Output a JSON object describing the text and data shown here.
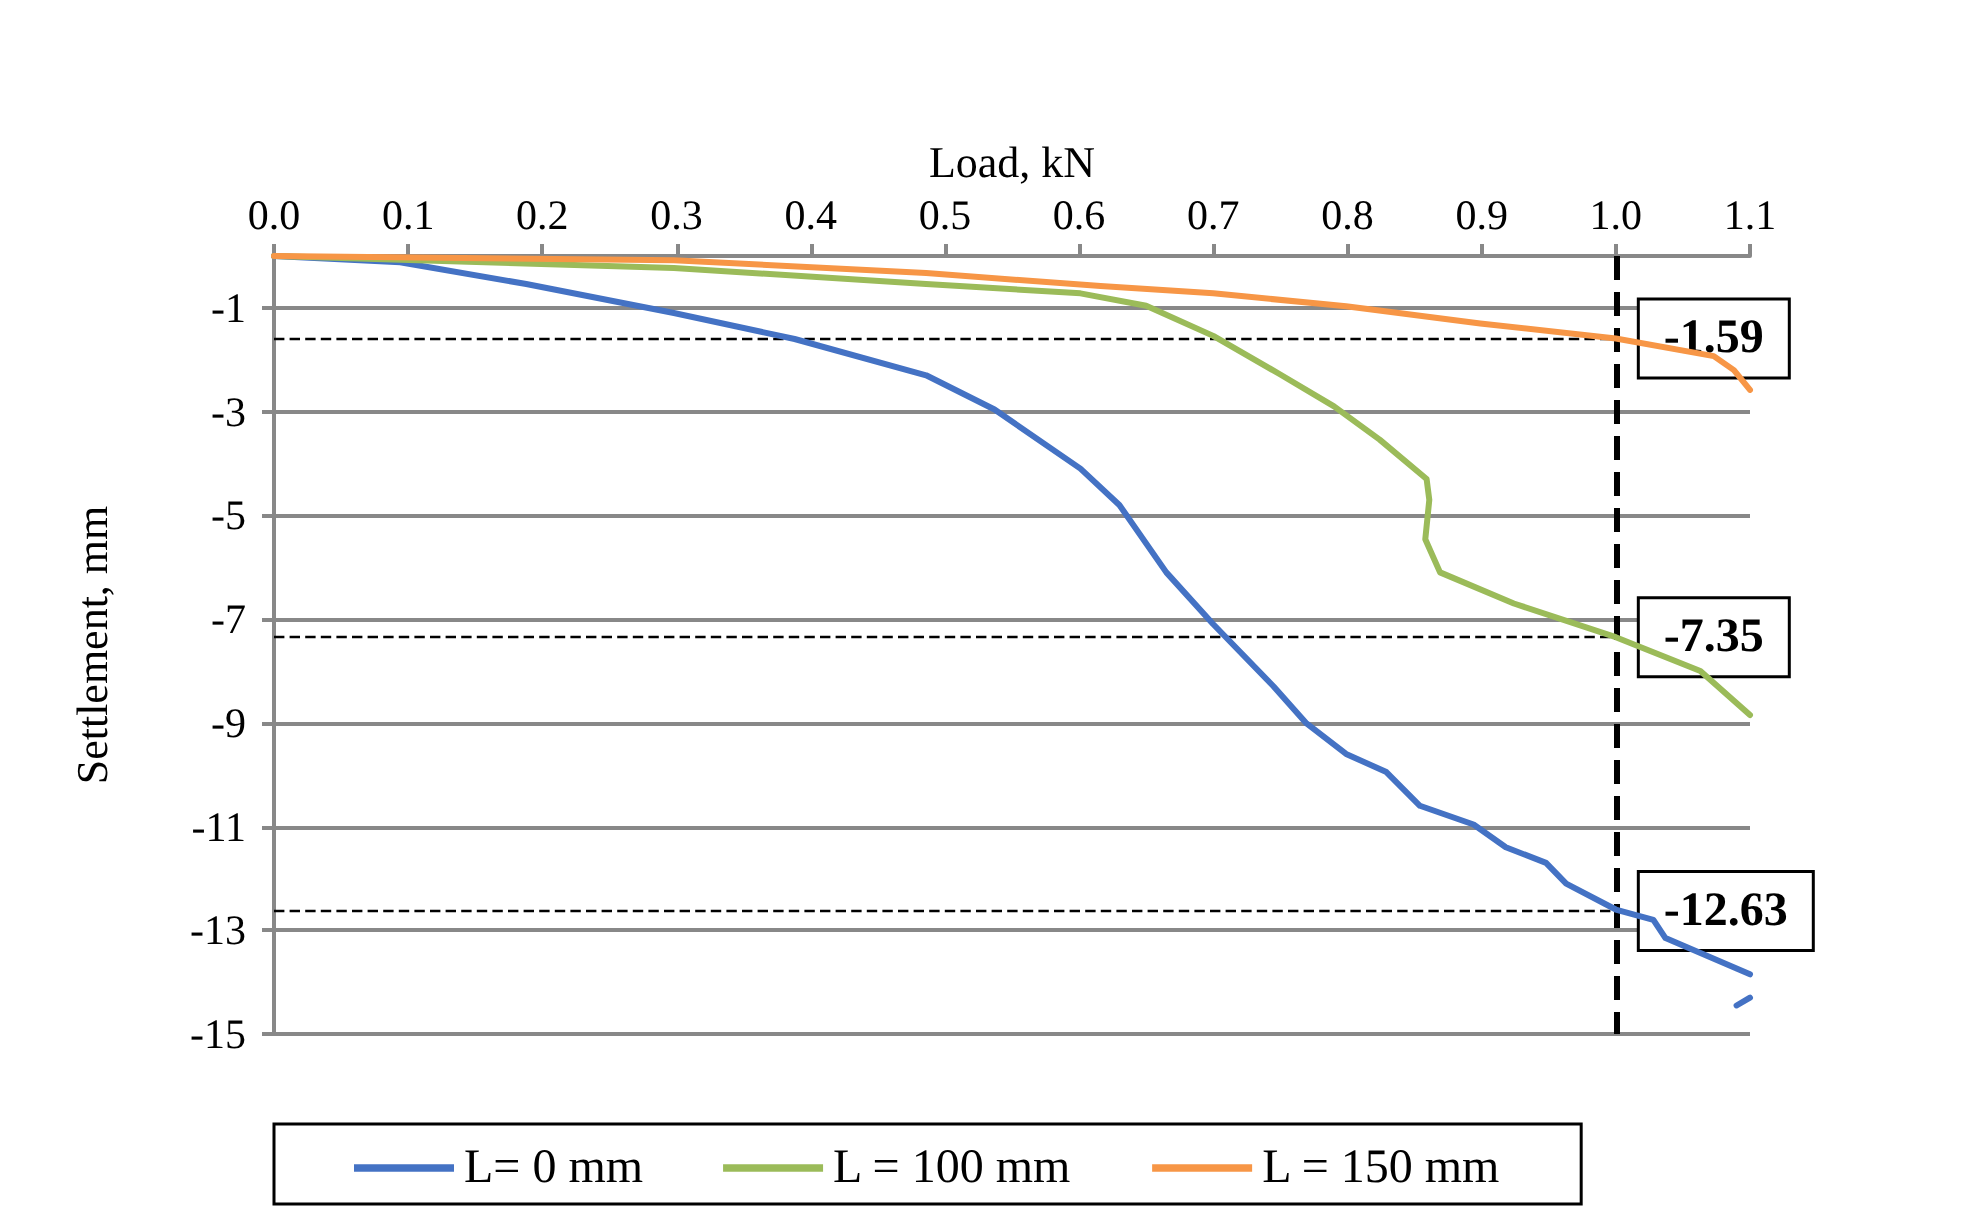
{
  "chart_data": {
    "type": "line",
    "xlabel": "Load, kN",
    "ylabel": "Settlement, mm",
    "xlim": [
      0,
      1.1
    ],
    "xticks": [
      {
        "value": 0,
        "label": "0.0"
      },
      0.1,
      0.2,
      0.3,
      0.4,
      0.5,
      0.6,
      0.7,
      0.8,
      0.9,
      {
        "value": 1,
        "label": "1.0"
      },
      1.1
    ],
    "ylim": [
      -15,
      0
    ],
    "yticks": [
      -15,
      -13,
      -11,
      -9,
      -7,
      -5,
      -3,
      -1
    ],
    "grid": "y",
    "legend": "bottom",
    "marker": "none",
    "line_style": "solid",
    "series": [
      {
        "name": "L= 0 mm",
        "color": "#4472c4",
        "x": [
          0,
          0.094,
          0.188,
          0.298,
          0.388,
          0.486,
          0.537,
          0.601,
          0.63,
          0.665,
          0.7,
          0.745,
          0.769,
          0.799,
          0.829,
          0.854,
          0.894,
          0.918,
          0.948,
          0.963,
          1.0,
          1.028,
          1.037,
          1.1,
          null,
          1.09,
          1.1
        ],
        "values": [
          0,
          -0.12,
          -0.54,
          -1.1,
          -1.6,
          -2.3,
          -2.96,
          -4.1,
          -4.8,
          -6.1,
          -7.1,
          -8.3,
          -9.0,
          -9.6,
          -9.95,
          -10.6,
          -10.96,
          -11.4,
          -11.7,
          -12.1,
          -12.6,
          -12.8,
          -13.15,
          -13.85,
          null,
          -14.45,
          -14.3
        ]
      },
      {
        "name": "L = 100 mm",
        "color": "#9bbb59",
        "x": [
          0,
          0.298,
          0.486,
          0.601,
          0.65,
          0.7,
          0.749,
          0.79,
          0.824,
          0.859,
          0.861,
          0.858,
          0.869,
          0.924,
          1.0,
          1.063,
          1.1
        ],
        "values": [
          0,
          -0.23,
          -0.54,
          -0.72,
          -0.96,
          -1.54,
          -2.27,
          -2.9,
          -3.54,
          -4.3,
          -4.7,
          -5.46,
          -6.1,
          -6.7,
          -7.35,
          -8.0,
          -8.85
        ]
      },
      {
        "name": "L = 150 mm",
        "color": "#f79646",
        "x": [
          0,
          0.298,
          0.486,
          0.616,
          0.7,
          0.799,
          0.899,
          1.0,
          1.073,
          1.088,
          1.1
        ],
        "values": [
          0,
          -0.08,
          -0.33,
          -0.58,
          -0.72,
          -0.97,
          -1.3,
          -1.59,
          -1.93,
          -2.2,
          -2.58
        ]
      }
    ],
    "ref_lines": [
      {
        "axis": "y",
        "value": -1.59,
        "label": "-1.59",
        "color": "#000000",
        "line_style": "dashed"
      },
      {
        "axis": "y",
        "value": -7.35,
        "label": "-7.35",
        "color": "#000000",
        "line_style": "dashed"
      },
      {
        "axis": "y",
        "value": -12.63,
        "label": "-12.63",
        "color": "#000000",
        "line_style": "dashed"
      },
      {
        "axis": "x",
        "value": 1.0,
        "color": "#000000",
        "line_style": "dashed"
      }
    ]
  }
}
